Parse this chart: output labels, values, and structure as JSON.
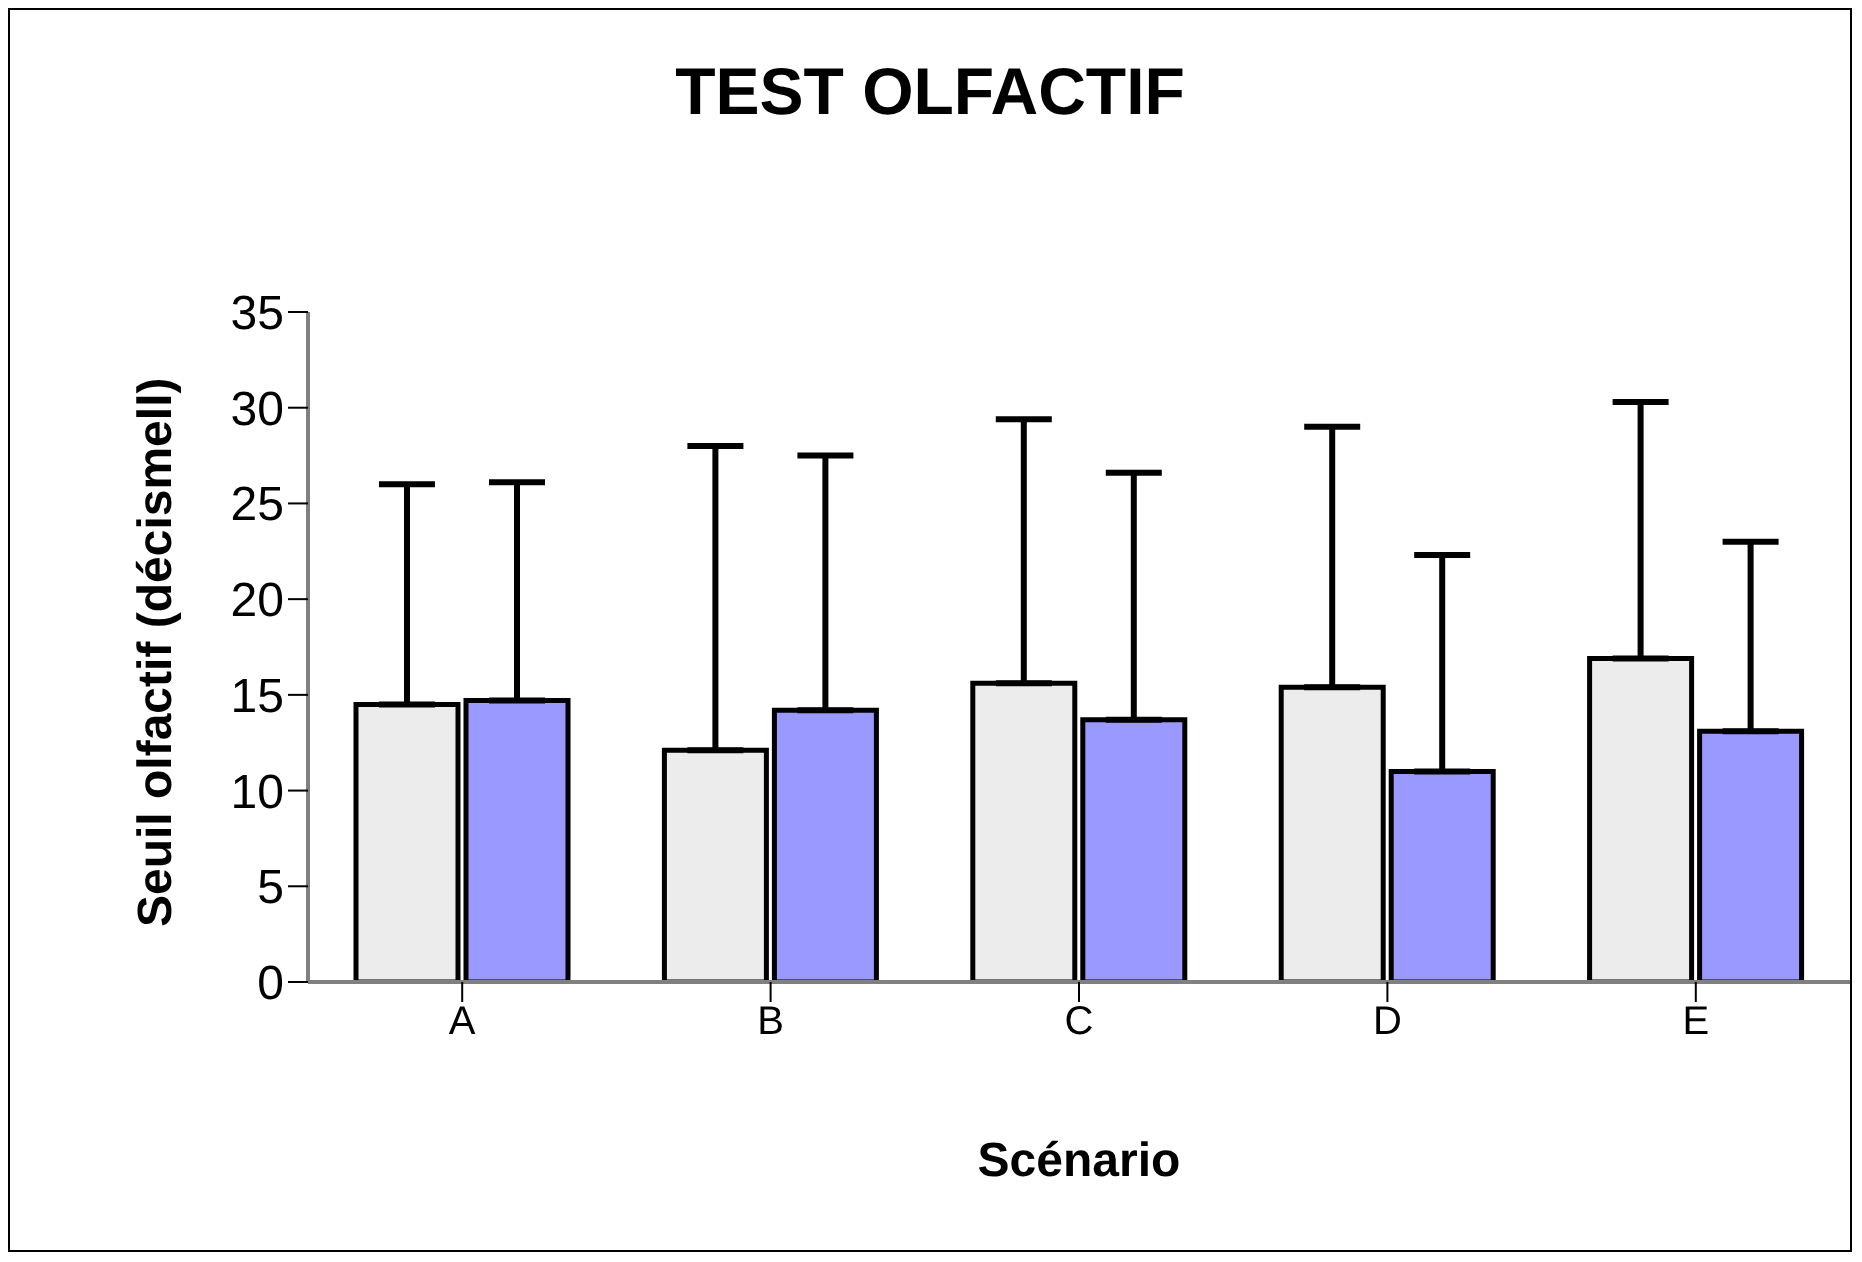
{
  "chart_data": {
    "type": "bar",
    "title": "TEST OLFACTIF",
    "xlabel": "Scénario",
    "ylabel": "Seuil olfactif (décismell)",
    "categories": [
      "A",
      "B",
      "C",
      "D",
      "E"
    ],
    "series": [
      {
        "color": "#ececec",
        "values": [
          14.5,
          12.1,
          15.6,
          15.4,
          16.9
        ],
        "errors": [
          [
            14.5,
            26.0
          ],
          [
            12.1,
            28.0
          ],
          [
            15.6,
            29.4
          ],
          [
            15.4,
            29.0
          ],
          [
            16.9,
            30.3
          ]
        ]
      },
      {
        "color": "#9999ff",
        "values": [
          14.7,
          14.2,
          13.7,
          11.0,
          13.1
        ],
        "errors": [
          [
            14.7,
            26.1
          ],
          [
            14.2,
            27.5
          ],
          [
            13.7,
            26.6
          ],
          [
            11.0,
            22.3
          ],
          [
            13.1,
            23.0
          ]
        ]
      }
    ],
    "ylim": [
      0,
      35
    ],
    "yticks": [
      0,
      5,
      10,
      15,
      20,
      25,
      30,
      35
    ]
  }
}
